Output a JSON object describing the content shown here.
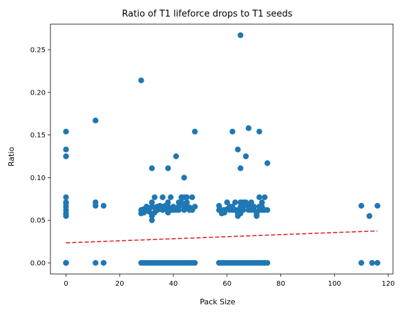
{
  "chart_data": {
    "type": "scatter",
    "title": "Ratio of T1 lifeforce drops to T1 seeds",
    "xlabel": "Pack Size",
    "ylabel": "Ratio",
    "xlim": [
      -5.8,
      121.8
    ],
    "ylim": [
      -0.013,
      0.28
    ],
    "xticks": [
      0,
      20,
      40,
      60,
      80,
      100,
      120
    ],
    "xtick_labels": [
      "0",
      "20",
      "40",
      "60",
      "80",
      "100",
      "120"
    ],
    "yticks": [
      0.0,
      0.05,
      0.1,
      0.15,
      0.2,
      0.25
    ],
    "ytick_labels": [
      "0.00",
      "0.05",
      "0.10",
      "0.15",
      "0.20",
      "0.25"
    ],
    "grid": false,
    "legend": "none",
    "point_color": "#1f77b4",
    "trend_color": "#d62728",
    "trendline": {
      "style": "dashed",
      "x": [
        0,
        116
      ],
      "y": [
        0.0235,
        0.0375
      ]
    },
    "series": [
      {
        "x": [
          0,
          0,
          0,
          0,
          0,
          0,
          0,
          0,
          0,
          0,
          0,
          0,
          0,
          11,
          11,
          11,
          11,
          14,
          14,
          28,
          28,
          28,
          28,
          29,
          29,
          29,
          30,
          30,
          30,
          31,
          31,
          31,
          32,
          32,
          32,
          32,
          32,
          32,
          33,
          33,
          33,
          33,
          34,
          34,
          34,
          35,
          35,
          35,
          36,
          36,
          36,
          36,
          37,
          37,
          37,
          38,
          38,
          38,
          38,
          38,
          39,
          39,
          39,
          40,
          40,
          40,
          41,
          41,
          41,
          42,
          42,
          42,
          42,
          43,
          43,
          43,
          44,
          44,
          44,
          44,
          44,
          45,
          45,
          45,
          45,
          46,
          46,
          46,
          47,
          47,
          47,
          48,
          48,
          48,
          57,
          57,
          57,
          58,
          58,
          58,
          59,
          59,
          59,
          60,
          60,
          60,
          61,
          61,
          61,
          62,
          62,
          62,
          62,
          63,
          63,
          63,
          64,
          64,
          64,
          64,
          64,
          65,
          65,
          65,
          65,
          65,
          65,
          66,
          66,
          66,
          66,
          67,
          67,
          67,
          68,
          68,
          68,
          68,
          69,
          69,
          69,
          69,
          70,
          70,
          70,
          71,
          71,
          71,
          72,
          72,
          72,
          72,
          72,
          73,
          73,
          73,
          73,
          74,
          74,
          74,
          75,
          75,
          75,
          110,
          110,
          113,
          114,
          116,
          116
        ],
        "y": [
          0,
          0.055,
          0.058,
          0.062,
          0.066,
          0.07,
          0.071,
          0.077,
          0.125,
          0.133,
          0.154,
          0,
          0,
          0,
          0.067,
          0.071,
          0.167,
          0,
          0.067,
          0,
          0.058,
          0.062,
          0.214,
          0,
          0.059,
          0.063,
          0,
          0.062,
          0.066,
          0,
          0.06,
          0.064,
          0,
          0.05,
          0.055,
          0.066,
          0.071,
          0.111,
          0,
          0.059,
          0.065,
          0.077,
          0,
          0.062,
          0.066,
          0,
          0.063,
          0.067,
          0,
          0.062,
          0.066,
          0.077,
          0,
          0.063,
          0.067,
          0,
          0.059,
          0.066,
          0.111,
          0.071,
          0,
          0.062,
          0.077,
          0,
          0.062,
          0.066,
          0,
          0.062,
          0.125,
          0,
          0.062,
          0.066,
          0.071,
          0,
          0.071,
          0.077,
          0,
          0.062,
          0.066,
          0.077,
          0.1,
          0,
          0.066,
          0.071,
          0.077,
          0,
          0.062,
          0.065,
          0,
          0.062,
          0.077,
          0,
          0.066,
          0.154,
          0,
          0.062,
          0.067,
          0,
          0.058,
          0.062,
          0,
          0.059,
          0.062,
          0,
          0.063,
          0.071,
          0,
          0.062,
          0.066,
          0,
          0.062,
          0.066,
          0.154,
          0,
          0.062,
          0.071,
          0,
          0.055,
          0.058,
          0.062,
          0.133,
          0,
          0.058,
          0.066,
          0.071,
          0.111,
          0.267,
          0,
          0.062,
          0.066,
          0.071,
          0,
          0.071,
          0.125,
          0,
          0.062,
          0.066,
          0.158,
          0,
          0.062,
          0.066,
          0.071,
          0,
          0.062,
          0.066,
          0,
          0.055,
          0.058,
          0,
          0.062,
          0.066,
          0.077,
          0.154,
          0,
          0.062,
          0.066,
          0.071,
          0,
          0.062,
          0.077,
          0,
          0.062,
          0.117,
          0,
          0.067,
          0.055,
          0,
          0,
          0.067
        ]
      }
    ]
  }
}
